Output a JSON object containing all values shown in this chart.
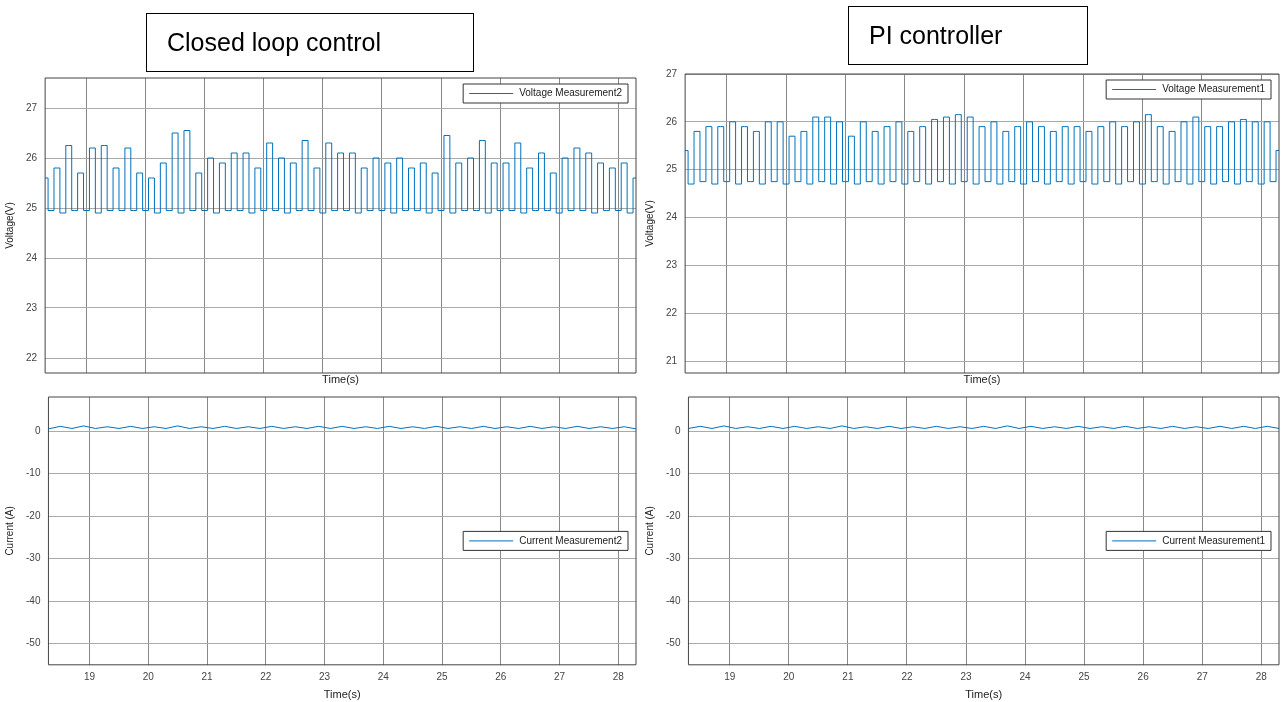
{
  "chart_data": [
    {
      "type": "step",
      "title": "Closed loop control",
      "xlabel": "Time(s)",
      "ylabel": "Voltage(V)",
      "xlim": [
        18.3,
        28.3
      ],
      "xticks": [
        19,
        20,
        21,
        22,
        23,
        24,
        25,
        26,
        27,
        28
      ],
      "ylim": [
        21.7,
        27.6
      ],
      "yticks": [
        22,
        23,
        24,
        25,
        26,
        27
      ],
      "tick_labels": "y",
      "grid": true,
      "legend": "top right",
      "marker": "none",
      "line_style": "solid",
      "x": [
        18.3,
        18.4,
        18.5,
        18.6,
        18.7,
        18.8,
        18.9,
        19.0,
        19.1,
        19.2,
        19.3,
        19.4,
        19.5,
        19.6,
        19.7,
        19.8,
        19.9,
        20.0,
        20.1,
        20.2,
        20.3,
        20.4,
        20.5,
        20.6,
        20.7,
        20.8,
        20.9,
        21.0,
        21.1,
        21.2,
        21.3,
        21.4,
        21.5,
        21.6,
        21.7,
        21.8,
        21.9,
        22.0,
        22.1,
        22.2,
        22.3,
        22.4,
        22.5,
        22.6,
        22.7,
        22.8,
        22.9,
        23.0,
        23.1,
        23.2,
        23.3,
        23.4,
        23.5,
        23.6,
        23.7,
        23.8,
        23.9,
        24.0,
        24.1,
        24.2,
        24.3,
        24.4,
        24.5,
        24.6,
        24.7,
        24.8,
        24.9,
        25.0,
        25.1,
        25.2,
        25.3,
        25.4,
        25.5,
        25.6,
        25.7,
        25.8,
        25.9,
        26.0,
        26.1,
        26.2,
        26.3,
        26.4,
        26.5,
        26.6,
        26.7,
        26.8,
        26.9,
        27.0,
        27.1,
        27.2,
        27.3,
        27.4,
        27.5,
        27.6,
        27.7,
        27.8,
        27.9,
        28.0,
        28.1,
        28.2,
        28.3
      ],
      "series": [
        {
          "name": "Voltage Measurement2",
          "color": "#0072bd",
          "values": [
            25.6,
            24.95,
            25.8,
            24.9,
            26.25,
            24.95,
            25.7,
            24.95,
            26.2,
            24.9,
            26.25,
            24.95,
            25.8,
            24.95,
            26.2,
            24.95,
            25.7,
            24.95,
            25.6,
            24.9,
            25.9,
            24.95,
            26.5,
            24.9,
            26.55,
            24.95,
            25.7,
            24.95,
            26.0,
            24.9,
            25.9,
            24.95,
            26.1,
            24.95,
            26.1,
            24.9,
            25.8,
            24.95,
            26.3,
            24.95,
            26.0,
            24.9,
            25.9,
            24.95,
            26.35,
            24.95,
            25.8,
            24.9,
            26.3,
            24.95,
            26.1,
            24.95,
            26.1,
            24.9,
            25.8,
            24.95,
            26.0,
            24.95,
            25.9,
            24.9,
            26.0,
            24.95,
            25.8,
            24.95,
            25.9,
            24.9,
            25.7,
            24.95,
            26.45,
            24.9,
            25.9,
            24.95,
            26.0,
            24.95,
            26.35,
            24.9,
            25.9,
            24.95,
            25.9,
            24.95,
            26.3,
            24.9,
            25.8,
            24.95,
            26.1,
            24.95,
            25.7,
            24.9,
            26.0,
            24.95,
            26.2,
            24.95,
            26.1,
            24.9,
            25.9,
            24.95,
            25.8,
            24.95,
            25.9,
            24.9,
            25.6
          ]
        }
      ]
    },
    {
      "type": "step",
      "title": "PI controller",
      "xlabel": "Time(s)",
      "ylabel": "Voltage(V)",
      "xlim": [
        18.3,
        28.3
      ],
      "xticks": [
        19,
        20,
        21,
        22,
        23,
        24,
        25,
        26,
        27,
        28
      ],
      "ylim": [
        20.75,
        27
      ],
      "yticks": [
        21,
        22,
        23,
        24,
        25,
        26,
        27
      ],
      "tick_labels": "y",
      "grid": true,
      "legend": "top right",
      "marker": "none",
      "line_style": "solid",
      "x": [
        18.3,
        18.4,
        18.5,
        18.6,
        18.7,
        18.8,
        18.9,
        19.0,
        19.1,
        19.2,
        19.3,
        19.4,
        19.5,
        19.6,
        19.7,
        19.8,
        19.9,
        20.0,
        20.1,
        20.2,
        20.3,
        20.4,
        20.5,
        20.6,
        20.7,
        20.8,
        20.9,
        21.0,
        21.1,
        21.2,
        21.3,
        21.4,
        21.5,
        21.6,
        21.7,
        21.8,
        21.9,
        22.0,
        22.1,
        22.2,
        22.3,
        22.4,
        22.5,
        22.6,
        22.7,
        22.8,
        22.9,
        23.0,
        23.1,
        23.2,
        23.3,
        23.4,
        23.5,
        23.6,
        23.7,
        23.8,
        23.9,
        24.0,
        24.1,
        24.2,
        24.3,
        24.4,
        24.5,
        24.6,
        24.7,
        24.8,
        24.9,
        25.0,
        25.1,
        25.2,
        25.3,
        25.4,
        25.5,
        25.6,
        25.7,
        25.8,
        25.9,
        26.0,
        26.1,
        26.2,
        26.3,
        26.4,
        26.5,
        26.6,
        26.7,
        26.8,
        26.9,
        27.0,
        27.1,
        27.2,
        27.3,
        27.4,
        27.5,
        27.6,
        27.7,
        27.8,
        27.9,
        28.0,
        28.1,
        28.2,
        28.3
      ],
      "series": [
        {
          "name": "Voltage Measurement1",
          "color": "#0072bd",
          "values": [
            25.4,
            24.7,
            25.8,
            24.75,
            25.9,
            24.7,
            25.9,
            24.75,
            26.0,
            24.7,
            25.9,
            24.75,
            25.8,
            24.7,
            26.0,
            24.75,
            26.0,
            24.7,
            25.7,
            24.75,
            25.8,
            24.7,
            26.1,
            24.75,
            26.1,
            24.7,
            26.0,
            24.75,
            25.7,
            24.7,
            26.0,
            24.75,
            25.8,
            24.7,
            25.9,
            24.75,
            26.0,
            24.7,
            25.8,
            24.75,
            25.9,
            24.7,
            26.05,
            24.75,
            26.1,
            24.7,
            26.15,
            24.75,
            26.1,
            24.7,
            25.9,
            24.75,
            26.0,
            24.7,
            25.8,
            24.75,
            25.9,
            24.7,
            26.0,
            24.75,
            25.9,
            24.7,
            25.8,
            24.75,
            25.9,
            24.7,
            25.9,
            24.75,
            25.8,
            24.7,
            25.9,
            24.75,
            26.0,
            24.7,
            25.9,
            24.75,
            26.0,
            24.7,
            26.15,
            24.75,
            25.9,
            24.7,
            25.8,
            24.75,
            26.0,
            24.7,
            26.1,
            24.75,
            25.9,
            24.7,
            25.9,
            24.75,
            26.0,
            24.7,
            26.05,
            24.75,
            26.0,
            24.7,
            26.0,
            24.75,
            25.4
          ]
        }
      ]
    },
    {
      "type": "line",
      "xlabel": "Time(s)",
      "ylabel": "Current (A)",
      "xlim": [
        18.3,
        28.3
      ],
      "xticks": [
        19,
        20,
        21,
        22,
        23,
        24,
        25,
        26,
        27,
        28
      ],
      "ylim": [
        -55,
        8
      ],
      "yticks": [
        -50,
        -40,
        -30,
        -20,
        -10,
        0
      ],
      "grid": true,
      "legend": "right",
      "marker": "none",
      "line_style": "solid",
      "x": [
        18.3,
        18.5,
        18.7,
        18.9,
        19.1,
        19.3,
        19.5,
        19.7,
        19.9,
        20.1,
        20.3,
        20.5,
        20.7,
        20.9,
        21.1,
        21.3,
        21.5,
        21.7,
        21.9,
        22.1,
        22.3,
        22.5,
        22.7,
        22.9,
        23.1,
        23.3,
        23.5,
        23.7,
        23.9,
        24.1,
        24.3,
        24.5,
        24.7,
        24.9,
        25.1,
        25.3,
        25.5,
        25.7,
        25.9,
        26.1,
        26.3,
        26.5,
        26.7,
        26.9,
        27.1,
        27.3,
        27.5,
        27.7,
        27.9,
        28.1,
        28.3
      ],
      "series": [
        {
          "name": "Current Measurement2",
          "color": "#0072bd",
          "values": [
            0.5,
            1.1,
            0.6,
            1.2,
            0.6,
            1.0,
            0.6,
            1.1,
            0.6,
            1.0,
            0.6,
            1.2,
            0.6,
            1.0,
            0.6,
            1.1,
            0.6,
            1.0,
            0.6,
            1.1,
            0.6,
            1.0,
            0.6,
            1.1,
            0.6,
            1.1,
            0.6,
            1.0,
            0.6,
            1.1,
            0.6,
            1.0,
            0.6,
            1.1,
            0.6,
            1.0,
            0.6,
            1.1,
            0.6,
            1.0,
            0.6,
            1.1,
            0.6,
            1.0,
            0.6,
            1.1,
            0.6,
            1.0,
            0.6,
            1.0,
            0.5
          ]
        }
      ]
    },
    {
      "type": "line",
      "xlabel": "Time(s)",
      "ylabel": "Current (A)",
      "xlim": [
        18.3,
        28.3
      ],
      "xticks": [
        19,
        20,
        21,
        22,
        23,
        24,
        25,
        26,
        27,
        28
      ],
      "ylim": [
        -55,
        8
      ],
      "yticks": [
        -50,
        -40,
        -30,
        -20,
        -10,
        0
      ],
      "grid": true,
      "legend": "right",
      "marker": "none",
      "line_style": "solid",
      "x": [
        18.3,
        18.5,
        18.7,
        18.9,
        19.1,
        19.3,
        19.5,
        19.7,
        19.9,
        20.1,
        20.3,
        20.5,
        20.7,
        20.9,
        21.1,
        21.3,
        21.5,
        21.7,
        21.9,
        22.1,
        22.3,
        22.5,
        22.7,
        22.9,
        23.1,
        23.3,
        23.5,
        23.7,
        23.9,
        24.1,
        24.3,
        24.5,
        24.7,
        24.9,
        25.1,
        25.3,
        25.5,
        25.7,
        25.9,
        26.1,
        26.3,
        26.5,
        26.7,
        26.9,
        27.1,
        27.3,
        27.5,
        27.7,
        27.9,
        28.1,
        28.3
      ],
      "series": [
        {
          "name": "Current Measurement1",
          "color": "#0072bd",
          "values": [
            0.6,
            1.1,
            0.6,
            1.2,
            0.6,
            1.0,
            0.6,
            1.1,
            0.6,
            1.1,
            0.6,
            1.0,
            0.6,
            1.2,
            0.6,
            1.0,
            0.6,
            1.1,
            0.6,
            1.0,
            0.6,
            1.1,
            0.6,
            1.0,
            0.6,
            1.1,
            0.6,
            1.2,
            0.6,
            1.1,
            0.6,
            1.0,
            0.6,
            1.1,
            0.6,
            1.0,
            0.6,
            1.1,
            0.6,
            1.0,
            0.6,
            1.1,
            0.6,
            1.0,
            0.6,
            1.1,
            0.6,
            1.1,
            0.6,
            1.1,
            0.6
          ]
        }
      ]
    }
  ]
}
